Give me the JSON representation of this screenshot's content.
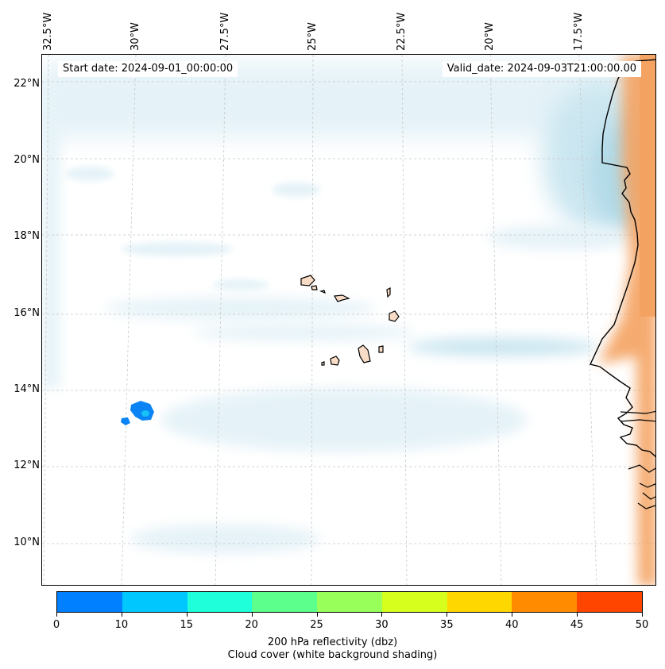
{
  "map": {
    "start_date": "Start date: 2024-09-01_00:00:00",
    "valid_date": "Valid_date: 2024-09-03T21:00:00.00",
    "longitude_labels": [
      "32.5°W",
      "30°W",
      "27.5°W",
      "25°W",
      "22.5°W",
      "20°W",
      "17.5°W"
    ],
    "latitude_labels": [
      "22°N",
      "20°N",
      "18°N",
      "16°N",
      "14°N",
      "12°N",
      "10°N"
    ]
  },
  "colorbar": {
    "ticks": [
      "0",
      "10",
      "15",
      "20",
      "25",
      "30",
      "35",
      "40",
      "45",
      "50"
    ],
    "colors": [
      "#0080ff",
      "#00c8ff",
      "#1effda",
      "#5cff8c",
      "#98ff5a",
      "#d6ff1e",
      "#ffd700",
      "#ff8c00",
      "#ff4500"
    ],
    "label": "200 hPa reflectivity (dbz)",
    "sublabel": "Cloud cover (white background shading)"
  },
  "colors": {
    "cloud_light": "#e2f1f7",
    "cloud_mid": "#c6e4ef",
    "cloud_dark": "#a9d6e5",
    "land_warm": "#f4a261",
    "island_fill": "#f8dcc6",
    "reflectivity_blue": "#0a84f5",
    "reflectivity_cyan": "#17c0f5"
  }
}
